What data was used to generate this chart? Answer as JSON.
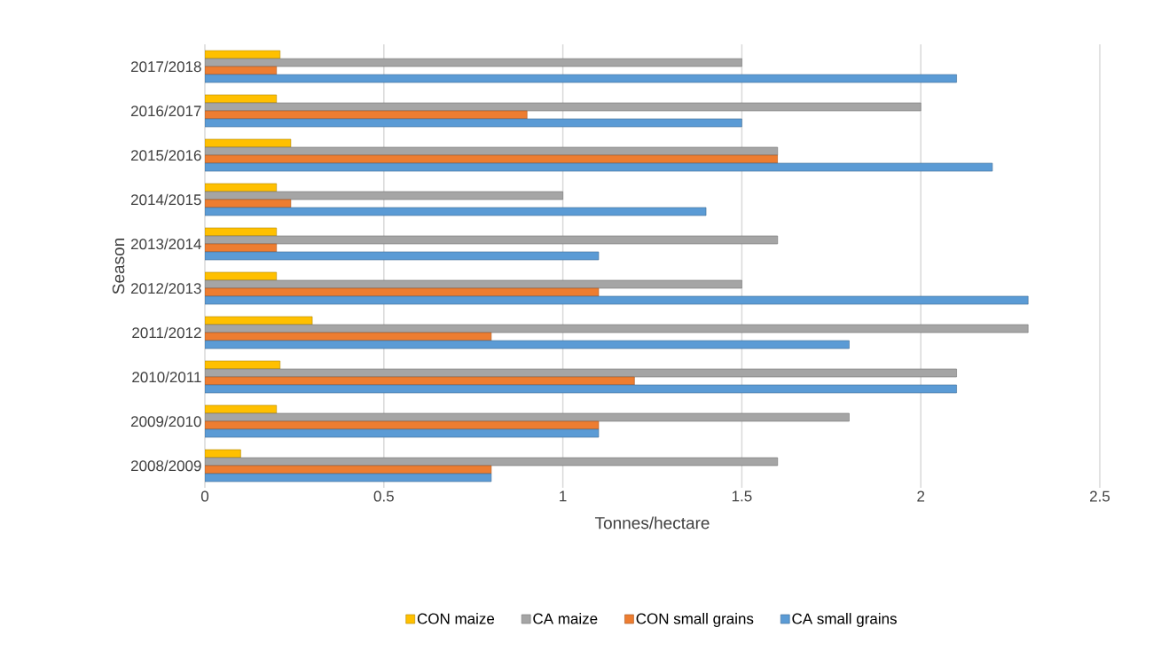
{
  "chart_data": {
    "type": "bar",
    "orientation": "horizontal",
    "xlabel": "Tonnes/hectare",
    "ylabel": "Season",
    "categories": [
      "2017/2018",
      "2016/2017",
      "2015/2016",
      "2014/2015",
      "2013/2014",
      "2012/2013",
      "2011/2012",
      "2010/2011",
      "2009/2010",
      "2008/2009"
    ],
    "series": [
      {
        "name": "CON maize",
        "color": "#ffc000",
        "values": [
          0.21,
          0.2,
          0.24,
          0.2,
          0.2,
          0.2,
          0.3,
          0.21,
          0.2,
          0.1
        ]
      },
      {
        "name": "CA maize",
        "color": "#a5a5a5",
        "values": [
          1.5,
          2.0,
          1.6,
          1.0,
          1.6,
          1.5,
          2.3,
          2.1,
          1.8,
          1.6
        ]
      },
      {
        "name": "CON small grains",
        "color": "#ed7d31",
        "values": [
          0.2,
          0.9,
          1.6,
          0.24,
          0.2,
          1.1,
          0.8,
          1.2,
          1.1,
          0.8
        ]
      },
      {
        "name": "CA small grains",
        "color": "#5b9bd5",
        "values": [
          2.1,
          1.5,
          2.2,
          1.4,
          1.1,
          2.3,
          1.8,
          2.1,
          1.1,
          0.8
        ]
      }
    ],
    "xlim": [
      0,
      2.5
    ],
    "xticks": [
      0,
      0.5,
      1,
      1.5,
      2,
      2.5
    ],
    "grid": "x",
    "legend": "bottom"
  }
}
